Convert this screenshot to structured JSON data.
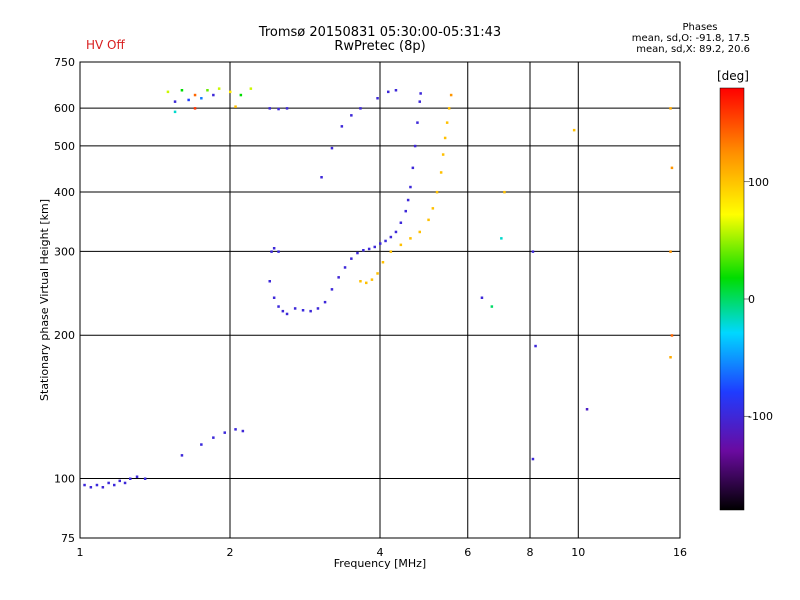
{
  "header": {
    "status": "HV Off",
    "title_line1": "Tromsø 20150831 05:30:00-05:31:43",
    "title_line2": "RwPretec (8p)",
    "stats_title": "Phases",
    "stats_line1": "mean, sd,O: -91.8, 17.5",
    "stats_line2": "mean, sd,X:  89.2, 20.6"
  },
  "chart_data": {
    "type": "scatter",
    "xlabel": "Frequency [MHz]",
    "ylabel": "Stationary phase Virtual Height [km]",
    "xscale": "log",
    "yscale": "log",
    "xlim": [
      1,
      16
    ],
    "ylim": [
      75,
      750
    ],
    "xticks": [
      1,
      2,
      4,
      6,
      8,
      10,
      16
    ],
    "yticks": [
      75,
      100,
      200,
      300,
      400,
      500,
      600,
      750
    ],
    "grid": true,
    "colorbar": {
      "label": "[deg]",
      "range": [
        -180,
        180
      ],
      "ticks": [
        100,
        0,
        -100
      ]
    },
    "series": [
      {
        "points": [
          {
            "x": 1.02,
            "y": 97,
            "c": -100
          },
          {
            "x": 1.05,
            "y": 96,
            "c": -100
          },
          {
            "x": 1.08,
            "y": 97,
            "c": -98
          },
          {
            "x": 1.11,
            "y": 96,
            "c": -102
          },
          {
            "x": 1.14,
            "y": 98,
            "c": -100
          },
          {
            "x": 1.17,
            "y": 97,
            "c": -99
          },
          {
            "x": 1.2,
            "y": 99,
            "c": -101
          },
          {
            "x": 1.23,
            "y": 98,
            "c": -100
          },
          {
            "x": 1.26,
            "y": 100,
            "c": -98
          },
          {
            "x": 1.3,
            "y": 101,
            "c": -100
          },
          {
            "x": 1.35,
            "y": 100,
            "c": -97
          },
          {
            "x": 1.6,
            "y": 112,
            "c": -100
          },
          {
            "x": 1.75,
            "y": 118,
            "c": -98
          },
          {
            "x": 1.85,
            "y": 122,
            "c": -100
          },
          {
            "x": 1.95,
            "y": 125,
            "c": -99
          },
          {
            "x": 2.05,
            "y": 127,
            "c": -100
          },
          {
            "x": 2.12,
            "y": 126,
            "c": -101
          },
          {
            "x": 2.42,
            "y": 300,
            "c": -100
          },
          {
            "x": 2.45,
            "y": 305,
            "c": -100
          },
          {
            "x": 2.5,
            "y": 300,
            "c": -98
          },
          {
            "x": 2.4,
            "y": 260,
            "c": -100
          },
          {
            "x": 2.45,
            "y": 240,
            "c": -100
          },
          {
            "x": 2.5,
            "y": 230,
            "c": -99
          },
          {
            "x": 2.55,
            "y": 225,
            "c": -101
          },
          {
            "x": 2.6,
            "y": 222,
            "c": -100
          },
          {
            "x": 2.7,
            "y": 228,
            "c": -100
          },
          {
            "x": 2.8,
            "y": 226,
            "c": -98
          },
          {
            "x": 2.9,
            "y": 225,
            "c": -100
          },
          {
            "x": 3.0,
            "y": 228,
            "c": -100
          },
          {
            "x": 3.1,
            "y": 235,
            "c": -100
          },
          {
            "x": 3.2,
            "y": 250,
            "c": -100
          },
          {
            "x": 3.3,
            "y": 265,
            "c": -102
          },
          {
            "x": 3.4,
            "y": 278,
            "c": -100
          },
          {
            "x": 3.5,
            "y": 290,
            "c": -100
          },
          {
            "x": 3.6,
            "y": 298,
            "c": -100
          },
          {
            "x": 3.7,
            "y": 302,
            "c": -99
          },
          {
            "x": 3.8,
            "y": 304,
            "c": -100
          },
          {
            "x": 3.9,
            "y": 307,
            "c": -100
          },
          {
            "x": 4.0,
            "y": 312,
            "c": -100
          },
          {
            "x": 4.1,
            "y": 316,
            "c": -98
          },
          {
            "x": 4.2,
            "y": 322,
            "c": -100
          },
          {
            "x": 4.3,
            "y": 330,
            "c": -100
          },
          {
            "x": 4.4,
            "y": 345,
            "c": -100
          },
          {
            "x": 4.5,
            "y": 365,
            "c": -100
          },
          {
            "x": 4.55,
            "y": 385,
            "c": -99
          },
          {
            "x": 4.6,
            "y": 410,
            "c": -100
          },
          {
            "x": 4.65,
            "y": 450,
            "c": -100
          },
          {
            "x": 4.7,
            "y": 500,
            "c": -101
          },
          {
            "x": 4.75,
            "y": 560,
            "c": -100
          },
          {
            "x": 4.8,
            "y": 620,
            "c": -100
          },
          {
            "x": 4.82,
            "y": 645,
            "c": -100
          },
          {
            "x": 3.05,
            "y": 430,
            "c": -100
          },
          {
            "x": 3.2,
            "y": 495,
            "c": -100
          },
          {
            "x": 3.35,
            "y": 550,
            "c": -100
          },
          {
            "x": 3.5,
            "y": 580,
            "c": -100
          },
          {
            "x": 3.65,
            "y": 600,
            "c": -100
          },
          {
            "x": 3.95,
            "y": 630,
            "c": -100
          },
          {
            "x": 4.15,
            "y": 650,
            "c": -100
          },
          {
            "x": 4.3,
            "y": 655,
            "c": -100
          },
          {
            "x": 2.4,
            "y": 600,
            "c": -100
          },
          {
            "x": 2.5,
            "y": 598,
            "c": -100
          },
          {
            "x": 2.6,
            "y": 600,
            "c": -100
          },
          {
            "x": 1.55,
            "y": 620,
            "c": -100
          },
          {
            "x": 1.65,
            "y": 625,
            "c": -80
          },
          {
            "x": 1.75,
            "y": 630,
            "c": -60
          },
          {
            "x": 1.85,
            "y": 640,
            "c": -100
          },
          {
            "x": 1.5,
            "y": 650,
            "c": 60
          },
          {
            "x": 1.6,
            "y": 655,
            "c": 20
          },
          {
            "x": 1.7,
            "y": 640,
            "c": 140
          },
          {
            "x": 1.8,
            "y": 655,
            "c": 40
          },
          {
            "x": 1.9,
            "y": 660,
            "c": 60
          },
          {
            "x": 2.0,
            "y": 650,
            "c": 80
          },
          {
            "x": 2.1,
            "y": 640,
            "c": 20
          },
          {
            "x": 2.2,
            "y": 660,
            "c": 60
          },
          {
            "x": 1.55,
            "y": 590,
            "c": -20
          },
          {
            "x": 1.7,
            "y": 600,
            "c": 160
          },
          {
            "x": 2.05,
            "y": 605,
            "c": 100
          },
          {
            "x": 3.65,
            "y": 260,
            "c": 100
          },
          {
            "x": 3.75,
            "y": 258,
            "c": 100
          },
          {
            "x": 3.85,
            "y": 262,
            "c": 100
          },
          {
            "x": 3.95,
            "y": 270,
            "c": 100
          },
          {
            "x": 4.05,
            "y": 285,
            "c": 100
          },
          {
            "x": 4.2,
            "y": 300,
            "c": 100
          },
          {
            "x": 4.4,
            "y": 310,
            "c": 100
          },
          {
            "x": 4.6,
            "y": 320,
            "c": 100
          },
          {
            "x": 4.8,
            "y": 330,
            "c": 100
          },
          {
            "x": 5.0,
            "y": 350,
            "c": 100
          },
          {
            "x": 5.1,
            "y": 370,
            "c": 100
          },
          {
            "x": 5.2,
            "y": 400,
            "c": 100
          },
          {
            "x": 5.3,
            "y": 440,
            "c": 100
          },
          {
            "x": 5.35,
            "y": 480,
            "c": 100
          },
          {
            "x": 5.4,
            "y": 520,
            "c": 100
          },
          {
            "x": 5.45,
            "y": 560,
            "c": 100
          },
          {
            "x": 5.5,
            "y": 600,
            "c": 100
          },
          {
            "x": 5.55,
            "y": 640,
            "c": 120
          },
          {
            "x": 6.4,
            "y": 240,
            "c": -100
          },
          {
            "x": 6.7,
            "y": 230,
            "c": 0
          },
          {
            "x": 7.0,
            "y": 320,
            "c": -20
          },
          {
            "x": 8.1,
            "y": 300,
            "c": -100
          },
          {
            "x": 8.2,
            "y": 190,
            "c": -100
          },
          {
            "x": 8.1,
            "y": 110,
            "c": -100
          },
          {
            "x": 10.4,
            "y": 140,
            "c": -110
          },
          {
            "x": 7.1,
            "y": 400,
            "c": 100
          },
          {
            "x": 9.8,
            "y": 540,
            "c": 100
          },
          {
            "x": 15.3,
            "y": 600,
            "c": 110
          },
          {
            "x": 15.4,
            "y": 450,
            "c": 120
          },
          {
            "x": 15.3,
            "y": 300,
            "c": 120
          },
          {
            "x": 15.4,
            "y": 200,
            "c": 140
          },
          {
            "x": 15.3,
            "y": 180,
            "c": 110
          }
        ]
      }
    ]
  }
}
